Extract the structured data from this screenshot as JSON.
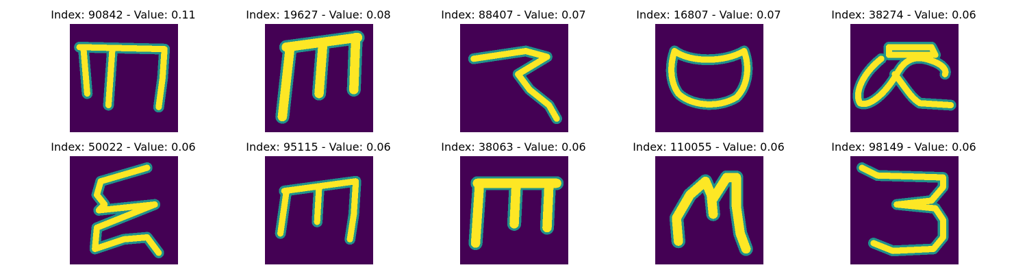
{
  "colors": {
    "background": "#440154",
    "stroke_edge": "#21918c",
    "stroke_core": "#fde725",
    "figure_background": "#ffffff"
  },
  "panels": [
    {
      "title": "Index: 90842 - Value: 0.11",
      "glyph": "glyph-m-narrow"
    },
    {
      "title": "Index: 19627 - Value: 0.08",
      "glyph": "glyph-m-bold"
    },
    {
      "title": "Index: 88407 - Value: 0.07",
      "glyph": "glyph-stroke-hook"
    },
    {
      "title": "Index: 16807 - Value: 0.07",
      "glyph": "glyph-oval"
    },
    {
      "title": "Index: 38274 - Value: 0.06",
      "glyph": "glyph-loop-curl"
    },
    {
      "title": "Index: 50022 - Value: 0.06",
      "glyph": "glyph-zigzag"
    },
    {
      "title": "Index: 95115 - Value: 0.06",
      "glyph": "glyph-m-slanted"
    },
    {
      "title": "Index: 38063 - Value: 0.06",
      "glyph": "glyph-m-block"
    },
    {
      "title": "Index: 110055 - Value: 0.06",
      "glyph": "glyph-m-rounded"
    },
    {
      "title": "Index: 98149 - Value: 0.06",
      "glyph": "glyph-three"
    }
  ]
}
